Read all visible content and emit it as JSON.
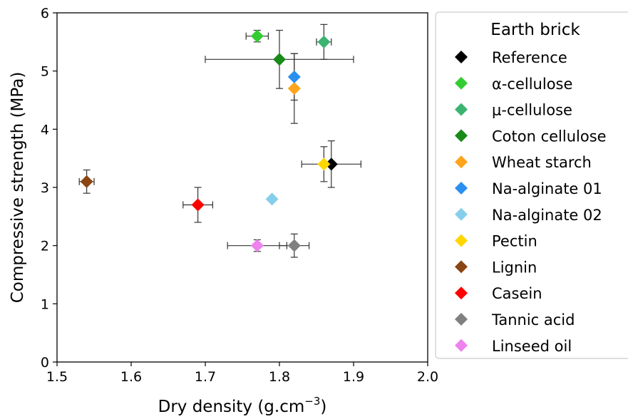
{
  "chart_data": {
    "type": "scatter",
    "xlabel": "Dry density (g.cm",
    "xlabel_sup": "−3",
    "xlabel_close": ")",
    "ylabel": "Compressive strength (MPa)",
    "xlim": [
      1.5,
      2.0
    ],
    "ylim": [
      0,
      6
    ],
    "x_ticks": [
      "1.5",
      "1.6",
      "1.7",
      "1.8",
      "1.9",
      "2.0"
    ],
    "y_ticks": [
      "0",
      "1",
      "2",
      "3",
      "4",
      "5",
      "6"
    ],
    "grid": false,
    "legend": {
      "title": "Earth brick",
      "placement": "outside-right"
    },
    "series": [
      {
        "name": "Reference",
        "color": "#000000",
        "x": 1.87,
        "y": 3.4,
        "xerr": 0.04,
        "yerr": 0.4
      },
      {
        "name": "α-cellulose",
        "color": "#33cc33",
        "x": 1.77,
        "y": 5.6,
        "xerr": 0.015,
        "yerr": 0.1
      },
      {
        "name": "μ-cellulose",
        "color": "#3cb371",
        "x": 1.86,
        "y": 5.5,
        "xerr": 0.01,
        "yerr": 0.3
      },
      {
        "name": "Coton cellulose",
        "color": "#1a8a1a",
        "x": 1.8,
        "y": 5.2,
        "xerr": 0.1,
        "yerr": 0.5
      },
      {
        "name": "Wheat starch",
        "color": "#ffa41b",
        "x": 1.82,
        "y": 4.7,
        "xerr": 0.0,
        "yerr": 0.6
      },
      {
        "name": "Na-alginate 01",
        "color": "#2b8ff0",
        "x": 1.82,
        "y": 4.9,
        "xerr": 0.0,
        "yerr": 0.4
      },
      {
        "name": "Na-alginate 02",
        "color": "#87ceeb",
        "x": 1.79,
        "y": 2.8,
        "xerr": 0.0,
        "yerr": 0.0
      },
      {
        "name": "Pectin",
        "color": "#ffd700",
        "x": 1.86,
        "y": 3.4,
        "xerr": 0.0,
        "yerr": 0.3
      },
      {
        "name": "Lignin",
        "color": "#8b4513",
        "x": 1.54,
        "y": 3.1,
        "xerr": 0.01,
        "yerr": 0.2
      },
      {
        "name": "Casein",
        "color": "#ff0000",
        "x": 1.69,
        "y": 2.7,
        "xerr": 0.02,
        "yerr": 0.3
      },
      {
        "name": "Tannic acid",
        "color": "#808080",
        "x": 1.82,
        "y": 2.0,
        "xerr": 0.02,
        "yerr": 0.2
      },
      {
        "name": "Linseed oil",
        "color": "#ee82ee",
        "x": 1.77,
        "y": 2.0,
        "xerr": 0.04,
        "yerr": 0.1
      }
    ]
  }
}
